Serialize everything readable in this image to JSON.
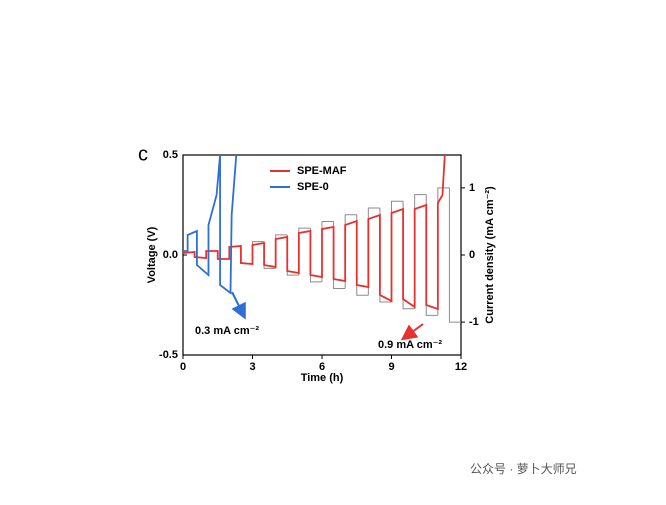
{
  "chart_data": {
    "type": "line",
    "panel_label": "c",
    "xlabel": "Time (h)",
    "ylabel": "Voltage (V)",
    "y2label": "Current density (mA cm⁻²)",
    "xlim": [
      0,
      12
    ],
    "xticks": [
      0,
      3,
      6,
      9,
      12
    ],
    "ylim": [
      -0.5,
      0.5
    ],
    "yticks": [
      {
        "value": -0.5,
        "label": "-0.5"
      },
      {
        "value": 0,
        "label": "0.0"
      },
      0.5
    ],
    "y2lim": [
      -1.49,
      1.49
    ],
    "y2ticks": [
      -1,
      0,
      1
    ],
    "legend": "upper left",
    "series": [
      {
        "name": "SPE-MAF",
        "color": "#e8302f",
        "x": [
          0,
          0.5,
          0.5,
          1,
          1,
          1.5,
          1.5,
          2,
          2,
          2.5,
          2.5,
          3,
          3,
          3.5,
          3.5,
          4,
          4,
          4.5,
          4.5,
          5,
          5,
          5.5,
          5.5,
          6,
          6,
          6.5,
          6.5,
          7,
          7,
          7.5,
          7.5,
          8,
          8,
          8.5,
          8.5,
          9,
          9,
          9.5,
          9.5,
          10,
          10,
          10.5,
          10.5,
          11,
          11,
          11.2,
          11.3
        ],
        "values": [
          0.01,
          0.015,
          -0.01,
          -0.015,
          0.02,
          0.02,
          -0.02,
          -0.02,
          0.04,
          0.045,
          -0.04,
          -0.045,
          0.05,
          0.06,
          -0.05,
          -0.06,
          0.08,
          0.09,
          -0.08,
          -0.09,
          0.11,
          0.12,
          -0.1,
          -0.11,
          0.13,
          0.14,
          -0.12,
          -0.13,
          0.15,
          0.17,
          -0.15,
          -0.16,
          0.18,
          0.2,
          -0.2,
          -0.23,
          0.21,
          0.23,
          -0.22,
          -0.26,
          0.23,
          0.25,
          -0.25,
          -0.27,
          0.26,
          0.3,
          0.5
        ]
      },
      {
        "name": "SPE-0",
        "color": "#2f6fd1",
        "x": [
          0,
          0.2,
          0.2,
          0.6,
          0.6,
          1.1,
          1.1,
          1.45,
          1.6,
          1.6,
          2.05,
          2.1,
          2.3
        ],
        "values": [
          0.02,
          0.02,
          0.1,
          0.12,
          -0.05,
          -0.1,
          0.15,
          0.3,
          0.5,
          -0.15,
          -0.19,
          0.2,
          0.5
        ]
      },
      {
        "axis": "y2",
        "step": true,
        "color": "#8c8c8c",
        "x": [
          3,
          3.5,
          4,
          4.5,
          5,
          5.5,
          6,
          6.5,
          7,
          7.5,
          8,
          8.5,
          9,
          9.5,
          10,
          10.5,
          11,
          11.5
        ],
        "values": [
          0.2,
          -0.2,
          0.3,
          -0.3,
          0.4,
          -0.4,
          0.5,
          -0.5,
          0.6,
          -0.6,
          0.7,
          -0.7,
          0.8,
          -0.8,
          0.9,
          -0.9,
          1.0,
          -1.0
        ]
      }
    ],
    "annotations": [
      "0.3 mA cm⁻²",
      "0.9 mA cm⁻²"
    ]
  },
  "watermark": "公众号 · 萝卜大师兄"
}
